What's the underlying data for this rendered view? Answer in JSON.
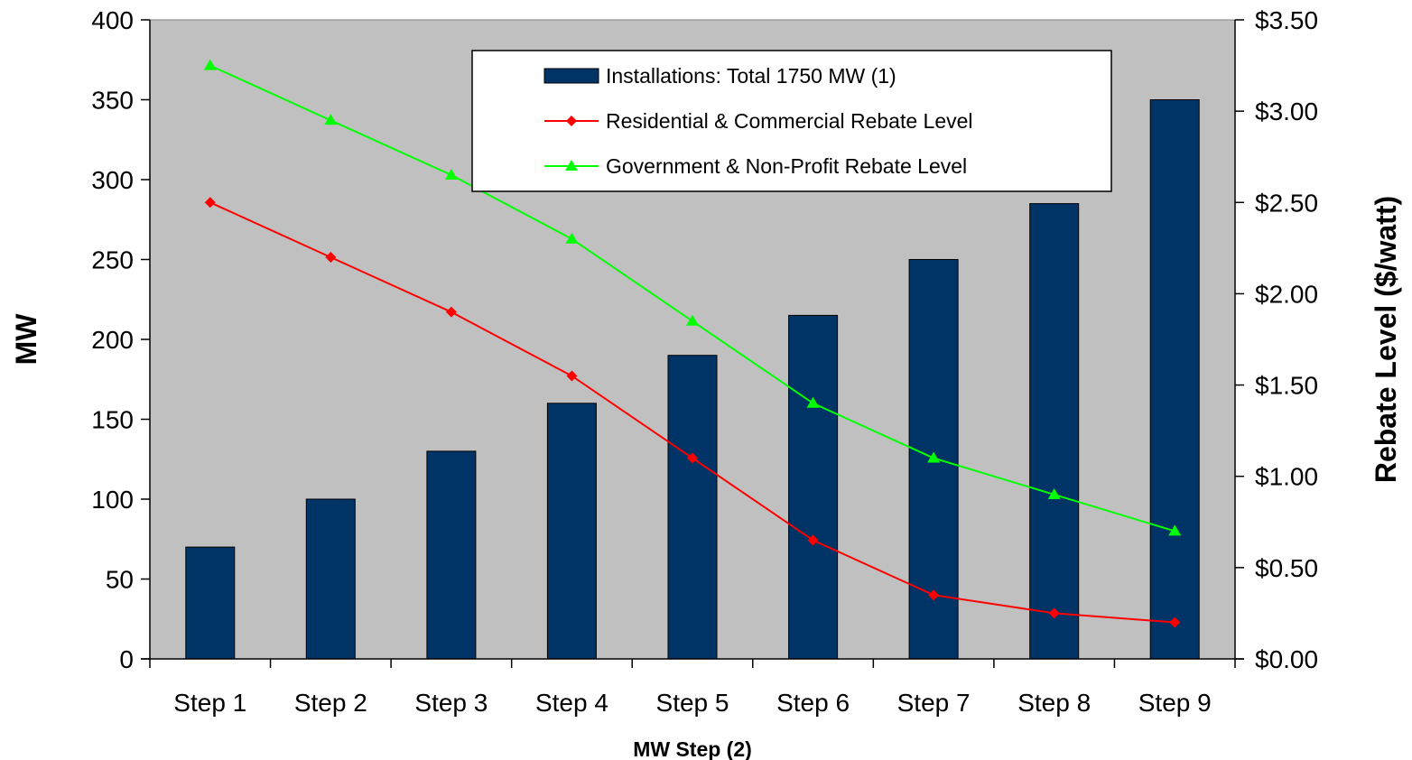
{
  "chart_data": {
    "type": "bar",
    "categories": [
      "Step 1",
      "Step 2",
      "Step 3",
      "Step 4",
      "Step 5",
      "Step 6",
      "Step 7",
      "Step 8",
      "Step 9"
    ],
    "series": [
      {
        "name": "Installations: Total 1750 MW (1)",
        "type": "bar",
        "axis": "left",
        "color": "#003366",
        "values": [
          70,
          100,
          130,
          160,
          190,
          215,
          250,
          285,
          350
        ]
      },
      {
        "name": "Residential & Commercial Rebate Level",
        "type": "line",
        "axis": "right",
        "color": "#ff0000",
        "marker": "diamond",
        "values": [
          2.5,
          2.2,
          1.9,
          1.55,
          1.1,
          0.65,
          0.35,
          0.25,
          0.2
        ]
      },
      {
        "name": "Government & Non-Profit Rebate Level",
        "type": "line",
        "axis": "right",
        "color": "#00ff00",
        "marker": "triangle",
        "values": [
          3.25,
          2.95,
          2.65,
          2.3,
          1.85,
          1.4,
          1.1,
          0.9,
          0.7
        ]
      }
    ],
    "xlabel": "MW Step (2)",
    "ylabel": "MW",
    "y2label": "Rebate Level ($/watt)",
    "ylim": [
      0,
      400
    ],
    "y2lim": [
      0,
      3.5
    ],
    "yticks": [
      0,
      50,
      100,
      150,
      200,
      250,
      300,
      350,
      400
    ],
    "y2ticks": [
      "$0.00",
      "$0.50",
      "$1.00",
      "$1.50",
      "$2.00",
      "$2.50",
      "$3.00",
      "$3.50"
    ],
    "plot_background": "#c0c0c0",
    "grid": false,
    "legend_position": "top-right"
  }
}
